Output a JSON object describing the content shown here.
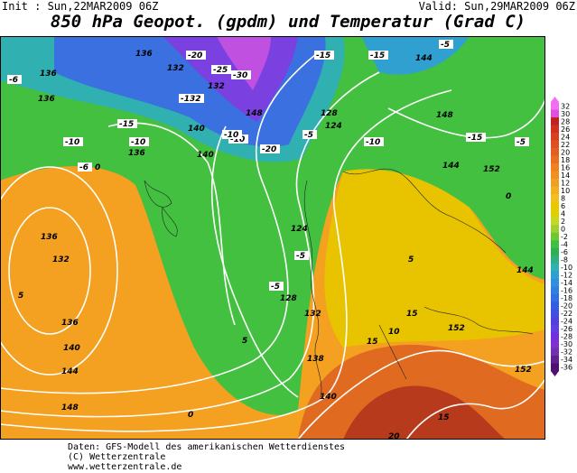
{
  "header": {
    "init": "Init : Sun,22MAR2009 06Z",
    "valid": "Valid: Sun,29MAR2009 06Z",
    "title": "850 hPa Geopot. (gpdm) und Temperatur (Grad C)"
  },
  "footer": [
    "Daten: GFS-Modell des amerikanischen Wetterdienstes",
    "(C) Wetterzentrale",
    "www.wetterzentrale.de"
  ],
  "colorbar": {
    "labels": [
      32,
      30,
      28,
      26,
      24,
      22,
      20,
      18,
      16,
      14,
      12,
      10,
      8,
      6,
      4,
      2,
      0,
      -2,
      -4,
      -6,
      -8,
      -10,
      -12,
      -14,
      -16,
      -18,
      -20,
      -22,
      -24,
      -26,
      -28,
      -30,
      -32,
      -34,
      -36
    ],
    "colors": [
      "#f070f0",
      "#e050e0",
      "#c02020",
      "#d03020",
      "#d84020",
      "#e05020",
      "#e06020",
      "#e87020",
      "#f08020",
      "#f09020",
      "#f0a020",
      "#f0b020",
      "#f0c020",
      "#e8c800",
      "#e0d000",
      "#c8d820",
      "#a0d030",
      "#70c830",
      "#40c040",
      "#30b050",
      "#30b080",
      "#30b0b0",
      "#30a0d0",
      "#3090e0",
      "#3080e0",
      "#3070e0",
      "#3060e0",
      "#4050e0",
      "#5040e0",
      "#6040e0",
      "#7030e0",
      "#8030d0",
      "#7030b0",
      "#602090",
      "#501070"
    ]
  },
  "map_labels": [
    "136",
    "-20",
    "132",
    "-25",
    "-30",
    "-132",
    "132",
    "128",
    "-15",
    "144",
    "-5",
    "-6",
    "136",
    "136",
    "-10",
    "-10",
    "140",
    "-15",
    "148",
    "-10",
    "140",
    "-10",
    "-5",
    "136",
    "-20",
    "124",
    "-10",
    "-15",
    "152",
    "144",
    "148",
    "-15",
    "-5",
    "124",
    "-5",
    "0",
    "-6",
    "136",
    "132",
    "5",
    "136",
    "140",
    "144",
    "148",
    "128",
    "132",
    "138",
    "140",
    "0",
    "5",
    "10",
    "15",
    "15",
    "152",
    "152",
    "20",
    "144",
    "5",
    "15",
    "0",
    "-5"
  ]
}
